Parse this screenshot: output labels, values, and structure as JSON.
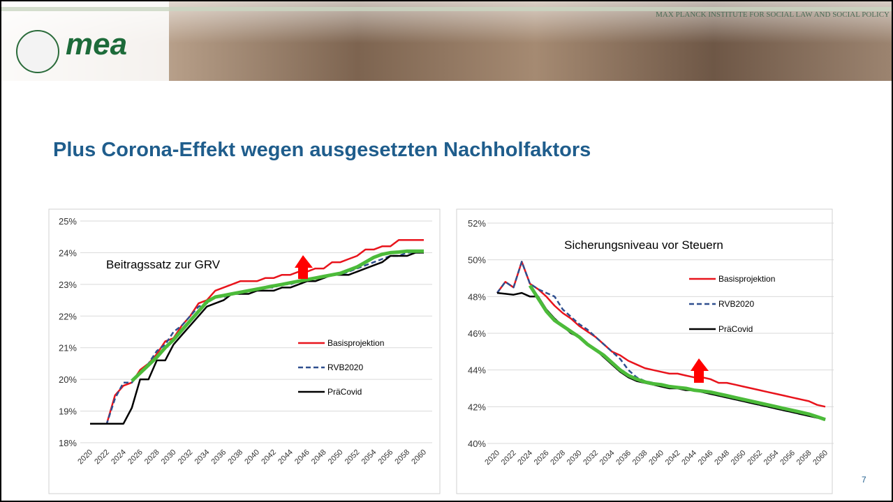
{
  "header": {
    "logo": "mea",
    "institute": "MAX PLANCK INSTITUTE FOR SOCIAL LAW AND SOCIAL POLICY"
  },
  "title": "Plus Corona-Effekt wegen ausgesetzten Nachholfaktors",
  "page_number": "7",
  "chart_data": [
    {
      "type": "line",
      "title": "Beitragssatz zur GRV",
      "categories": [
        "2020",
        null,
        "2022",
        null,
        "2024",
        null,
        "2026",
        null,
        "2028",
        null,
        "2030",
        null,
        "2032",
        null,
        "2034",
        null,
        "2036",
        null,
        "2038",
        null,
        "2040",
        null,
        "2042",
        null,
        "2044",
        null,
        "2046",
        null,
        "2048",
        null,
        "2050",
        null,
        "2052",
        null,
        "2054",
        null,
        "2056",
        null,
        "2058",
        null,
        "2060"
      ],
      "ylim": [
        18,
        25
      ],
      "yticks": [
        {
          "value": 18,
          "label": "18%"
        },
        {
          "value": 19,
          "label": "19%"
        },
        {
          "value": 20,
          "label": "20%"
        },
        {
          "value": 21,
          "label": "21%"
        },
        {
          "value": 22,
          "label": "22%"
        },
        {
          "value": 23,
          "label": "23%"
        },
        {
          "value": 24,
          "label": "24%"
        },
        {
          "value": 25,
          "label": "25%"
        }
      ],
      "grid": true,
      "series": [
        {
          "name": "Basisprojektion",
          "color": "#e8141c",
          "values": [
            18.6,
            18.6,
            18.6,
            19.5,
            19.8,
            19.9,
            20.3,
            20.5,
            20.8,
            21.2,
            21.3,
            21.7,
            22.0,
            22.4,
            22.5,
            22.8,
            22.9,
            23.0,
            23.1,
            23.1,
            23.1,
            23.2,
            23.2,
            23.3,
            23.3,
            23.4,
            23.4,
            23.5,
            23.5,
            23.7,
            23.7,
            23.8,
            23.9,
            24.1,
            24.1,
            24.2,
            24.2,
            24.4,
            24.4,
            24.4,
            24.4
          ]
        },
        {
          "name": "RVB2020",
          "color": "#2f4f8f",
          "dashed": true,
          "values": [
            18.6,
            18.6,
            18.6,
            19.4,
            19.9,
            19.9,
            20.2,
            20.5,
            20.9,
            21.1,
            21.5,
            21.7,
            22.0,
            22.3,
            22.4,
            22.6,
            22.6,
            22.7,
            22.7,
            22.8,
            22.8,
            22.9,
            22.9,
            23.0,
            23.0,
            23.1,
            23.1,
            23.2,
            23.2,
            23.3,
            23.3,
            23.4,
            23.5,
            23.6,
            23.7,
            23.8,
            23.9,
            23.9,
            24.0,
            24.0,
            24.0
          ]
        },
        {
          "name": "PräCovid",
          "color": "#000000",
          "values": [
            18.6,
            18.6,
            18.6,
            18.6,
            18.6,
            19.1,
            20.0,
            20.0,
            20.6,
            20.6,
            21.1,
            21.4,
            21.7,
            22.0,
            22.3,
            22.4,
            22.5,
            22.7,
            22.7,
            22.7,
            22.8,
            22.8,
            22.8,
            22.9,
            22.9,
            23.0,
            23.1,
            23.1,
            23.2,
            23.3,
            23.3,
            23.3,
            23.4,
            23.5,
            23.6,
            23.7,
            23.9,
            23.9,
            23.9,
            24.0,
            24.0
          ]
        },
        {
          "color": "#4cbb3a",
          "values": [
            null,
            null,
            null,
            null,
            null,
            19.95,
            20.2,
            20.45,
            20.7,
            21.0,
            21.25,
            21.55,
            21.85,
            22.15,
            22.45,
            22.6,
            22.65,
            22.7,
            22.75,
            22.8,
            22.85,
            22.9,
            22.95,
            23.0,
            23.05,
            23.1,
            23.15,
            23.2,
            23.25,
            23.3,
            23.35,
            23.45,
            23.55,
            23.7,
            23.85,
            23.95,
            24.0,
            24.02,
            24.05,
            24.05,
            24.05
          ]
        }
      ]
    },
    {
      "type": "line",
      "title": "Sicherungsniveau vor Steuern",
      "categories": [
        "2020",
        null,
        "2022",
        null,
        "2024",
        null,
        "2026",
        null,
        "2028",
        null,
        "2030",
        null,
        "2032",
        null,
        "2034",
        null,
        "2036",
        null,
        "2038",
        null,
        "2040",
        null,
        "2042",
        null,
        "2044",
        null,
        "2046",
        null,
        "2048",
        null,
        "2050",
        null,
        "2052",
        null,
        "2054",
        null,
        "2056",
        null,
        "2058",
        null,
        "2060"
      ],
      "ylim": [
        40,
        52
      ],
      "yticks": [
        {
          "value": 40,
          "label": "40%"
        },
        {
          "value": 42,
          "label": "42%"
        },
        {
          "value": 44,
          "label": "44%"
        },
        {
          "value": 46,
          "label": "46%"
        },
        {
          "value": 48,
          "label": "48%"
        },
        {
          "value": 50,
          "label": "50%"
        },
        {
          "value": 52,
          "label": "52%"
        }
      ],
      "grid": true,
      "series": [
        {
          "name": "Basisprojektion",
          "color": "#e8141c",
          "values": [
            48.2,
            48.8,
            48.5,
            49.9,
            48.7,
            48.4,
            48.0,
            47.5,
            47.1,
            46.8,
            46.4,
            46.1,
            45.8,
            45.4,
            45.0,
            44.8,
            44.5,
            44.3,
            44.1,
            44.0,
            43.9,
            43.8,
            43.8,
            43.7,
            43.6,
            43.6,
            43.5,
            43.3,
            43.3,
            43.2,
            43.1,
            43.0,
            42.9,
            42.8,
            42.7,
            42.6,
            42.5,
            42.4,
            42.3,
            42.1,
            42.0
          ]
        },
        {
          "name": "RVB2020",
          "color": "#2f4f8f",
          "dashed": true,
          "values": [
            48.2,
            48.8,
            48.5,
            49.9,
            48.7,
            48.4,
            48.2,
            48.0,
            47.3,
            46.9,
            46.5,
            46.2,
            45.8,
            45.4,
            45.0,
            44.6,
            44.0,
            43.6,
            43.4,
            43.3,
            43.2,
            43.1,
            43.0,
            43.0,
            42.9,
            42.8,
            42.7,
            42.6,
            42.5,
            42.4,
            42.3,
            42.2,
            42.1,
            42.0,
            41.9,
            41.8,
            41.7,
            41.6,
            41.5,
            41.4,
            41.3
          ]
        },
        {
          "name": "PräCovid",
          "color": "#000000",
          "values": [
            48.2,
            48.15,
            48.1,
            48.2,
            48.0,
            48.0,
            47.3,
            46.8,
            46.4,
            46.0,
            45.8,
            45.4,
            45.1,
            44.7,
            44.3,
            43.9,
            43.6,
            43.4,
            43.3,
            43.2,
            43.1,
            43.0,
            43.0,
            42.9,
            42.9,
            42.8,
            42.7,
            42.6,
            42.5,
            42.4,
            42.3,
            42.2,
            42.1,
            42.0,
            41.9,
            41.8,
            41.7,
            41.6,
            41.5,
            41.4,
            41.3
          ]
        },
        {
          "color": "#4cbb3a",
          "values": [
            null,
            null,
            null,
            null,
            48.6,
            47.9,
            47.2,
            46.7,
            46.4,
            46.1,
            45.8,
            45.4,
            45.1,
            44.8,
            44.4,
            44.0,
            43.7,
            43.5,
            43.35,
            43.25,
            43.2,
            43.1,
            43.05,
            43.0,
            42.9,
            42.85,
            42.8,
            42.7,
            42.6,
            42.5,
            42.4,
            42.3,
            42.2,
            42.1,
            42.0,
            41.9,
            41.8,
            41.7,
            41.6,
            41.45,
            41.3
          ]
        }
      ]
    }
  ]
}
